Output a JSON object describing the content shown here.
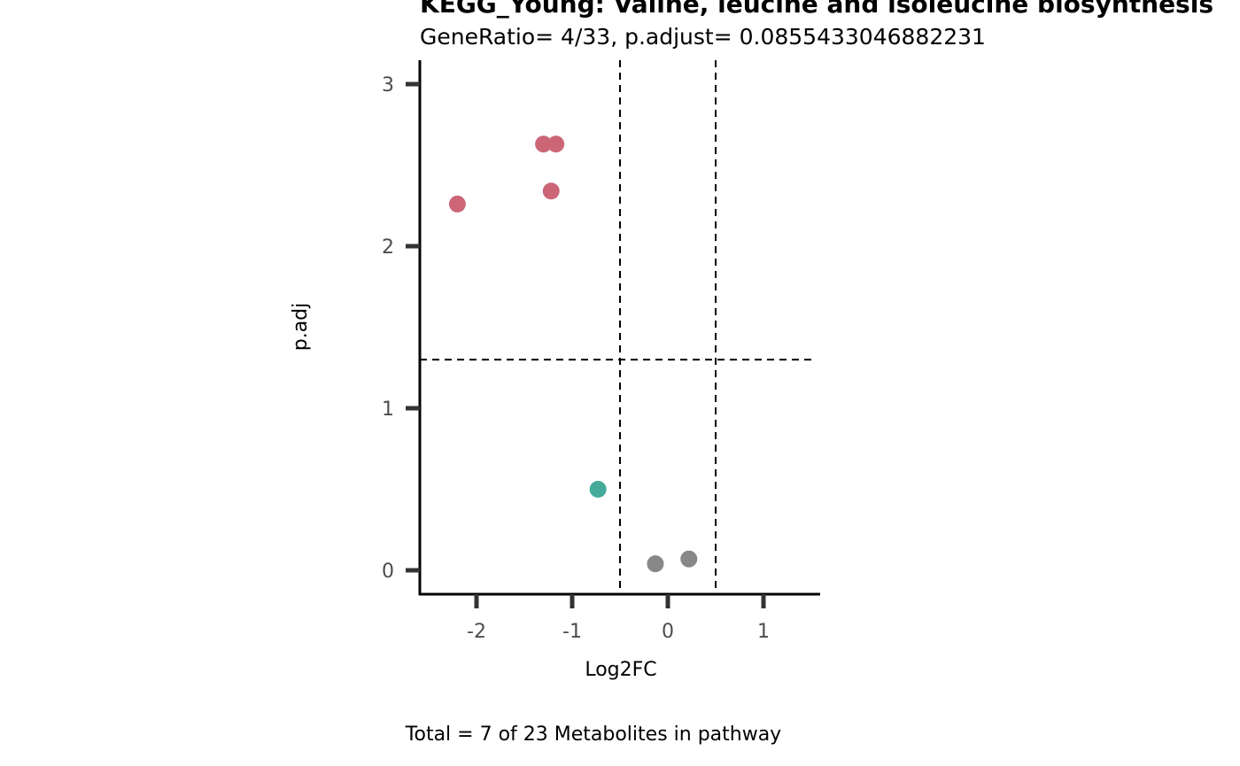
{
  "chart_data": {
    "type": "scatter",
    "title": "KEGG_Young: Valine, leucine and isoleucine biosynthesis",
    "subtitle": "GeneRatio= 4/33, p.adjust= 0.0855433046882231",
    "xlabel": "Log2FC",
    "ylabel": "p.adj",
    "caption": "Total = 7 of 23 Metabolites in pathway",
    "xlim": [
      -2.6,
      1.6
    ],
    "ylim": [
      -0.15,
      3.15
    ],
    "x_ticks": [
      -2,
      -1,
      0,
      1
    ],
    "x_tick_labels": [
      "-2",
      "-1",
      "0",
      "1"
    ],
    "y_ticks": [
      0,
      1,
      2,
      3
    ],
    "y_tick_labels": [
      "0",
      "1",
      "2",
      "3"
    ],
    "reference_lines": {
      "vertical": [
        -0.5,
        0.5
      ],
      "horizontal": [
        1.3
      ]
    },
    "grid": false,
    "legend": "none",
    "colors": {
      "significant_down": "#CC6677",
      "down": "#44AA99",
      "not_significant": "#888888"
    },
    "points": [
      {
        "x": -1.3,
        "y": 2.63,
        "group": "significant_down"
      },
      {
        "x": -1.17,
        "y": 2.63,
        "group": "significant_down"
      },
      {
        "x": -1.22,
        "y": 2.34,
        "group": "significant_down"
      },
      {
        "x": -2.2,
        "y": 2.26,
        "group": "significant_down"
      },
      {
        "x": -0.73,
        "y": 0.5,
        "group": "down"
      },
      {
        "x": -0.13,
        "y": 0.04,
        "group": "not_significant"
      },
      {
        "x": 0.22,
        "y": 0.07,
        "group": "not_significant"
      }
    ]
  }
}
